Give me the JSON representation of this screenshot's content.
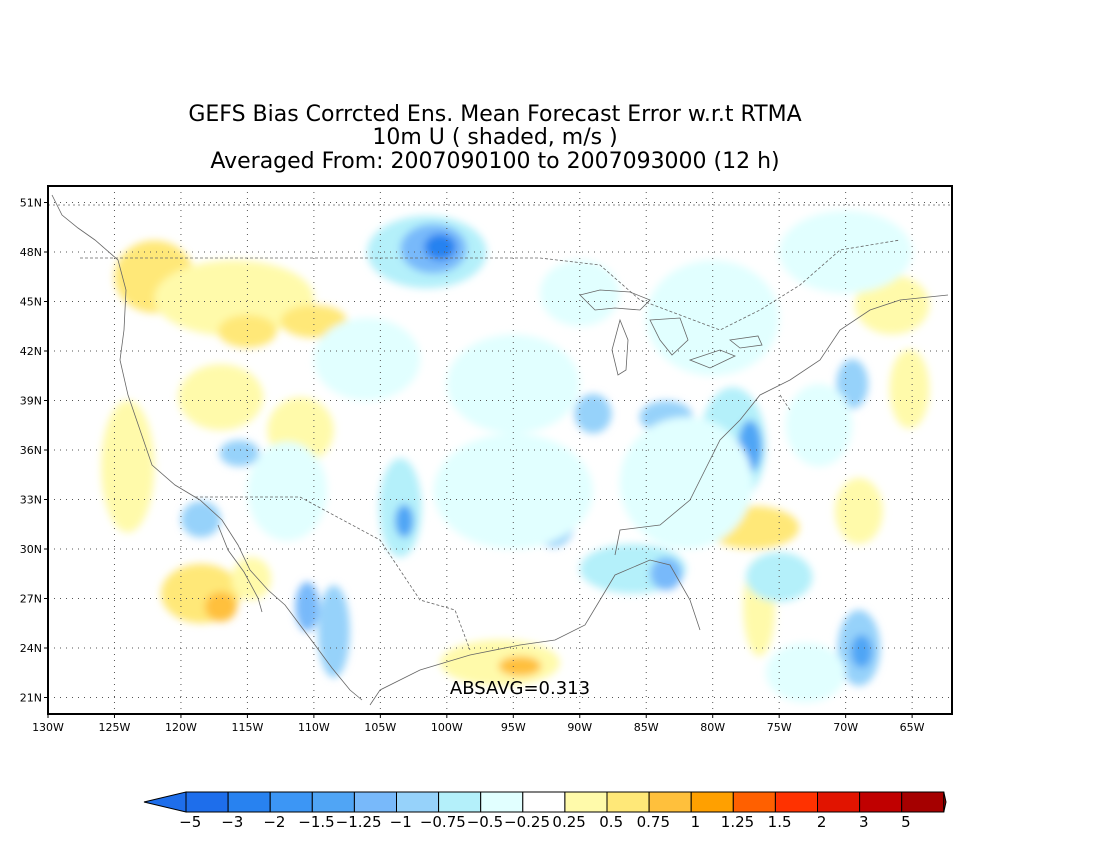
{
  "title": {
    "line1": "GEFS Bias Corrcted Ens. Mean Forecast Error w.r.t RTMA",
    "line2": "10m U ( shaded, m/s )",
    "line3": "Averaged From: 2007090100 to 2007093000 (12 h)"
  },
  "map": {
    "lon_range": [
      -130,
      -62
    ],
    "lat_range": [
      20,
      52
    ],
    "lat_ticks": [
      "21N",
      "24N",
      "27N",
      "30N",
      "33N",
      "36N",
      "39N",
      "42N",
      "45N",
      "48N",
      "51N"
    ],
    "lon_ticks": [
      "130W",
      "125W",
      "120W",
      "115W",
      "110W",
      "105W",
      "100W",
      "95W",
      "90W",
      "85W",
      "80W",
      "75W",
      "70W",
      "65W"
    ],
    "annotation": "ABSAVG=0.313"
  },
  "colorbar": {
    "labels": [
      "−5",
      "−3",
      "−2",
      "−1.5",
      "−1.25",
      "−1",
      "−0.75",
      "−0.5",
      "−0.25",
      "0.25",
      "0.5",
      "0.75",
      "1",
      "1.25",
      "1.5",
      "2",
      "3",
      "5"
    ],
    "colors": [
      "#1e6eeb",
      "#2882f0",
      "#3c96f5",
      "#50a5f5",
      "#78b9fa",
      "#96d2fa",
      "#b4f0fa",
      "#e1ffff",
      "#ffffff",
      "#fffaaa",
      "#ffe878",
      "#ffc03c",
      "#ffa000",
      "#ff6000",
      "#ff3200",
      "#e11400",
      "#c00000",
      "#a50000"
    ]
  },
  "blobs": [
    {
      "lon": -123,
      "lat": 47.2,
      "rx": 1.2,
      "ry": 1.2,
      "c": 11
    },
    {
      "lon": -122,
      "lat": 46.5,
      "rx": 3.0,
      "ry": 2.2,
      "c": 10
    },
    {
      "lon": -116,
      "lat": 45.2,
      "rx": 6,
      "ry": 2.3,
      "c": 9
    },
    {
      "lon": -115,
      "lat": 43.2,
      "rx": 2.2,
      "ry": 1.0,
      "c": 10
    },
    {
      "lon": -110,
      "lat": 43.8,
      "rx": 2.5,
      "ry": 1.0,
      "c": 10
    },
    {
      "lon": -117,
      "lat": 39.2,
      "rx": 3.2,
      "ry": 2.0,
      "c": 9
    },
    {
      "lon": -111,
      "lat": 37.2,
      "rx": 2.5,
      "ry": 2.0,
      "c": 9
    },
    {
      "lon": -124,
      "lat": 35.0,
      "rx": 2,
      "ry": 4.0,
      "c": 9
    },
    {
      "lon": -118.5,
      "lat": 27.3,
      "rx": 3.0,
      "ry": 1.8,
      "c": 10
    },
    {
      "lon": -117,
      "lat": 26.5,
      "rx": 1.2,
      "ry": 0.9,
      "c": 11
    },
    {
      "lon": -114.7,
      "lat": 28.2,
      "rx": 1.5,
      "ry": 1.3,
      "c": 9
    },
    {
      "lon": -96,
      "lat": 23.1,
      "rx": 4.5,
      "ry": 1.4,
      "c": 9
    },
    {
      "lon": -94.5,
      "lat": 22.9,
      "rx": 1.6,
      "ry": 0.6,
      "c": 11
    },
    {
      "lon": -77,
      "lat": 31.3,
      "rx": 3.5,
      "ry": 1.3,
      "c": 10
    },
    {
      "lon": -65.2,
      "lat": 39.7,
      "rx": 1.5,
      "ry": 2.4,
      "c": 9
    },
    {
      "lon": -66.5,
      "lat": 44.8,
      "rx": 2.8,
      "ry": 1.8,
      "c": 9
    },
    {
      "lon": -69,
      "lat": 32.3,
      "rx": 1.8,
      "ry": 2.0,
      "c": 9
    },
    {
      "lon": -76.5,
      "lat": 26.5,
      "rx": 1.2,
      "ry": 3.0,
      "c": 9
    },
    {
      "lon": -101.5,
      "lat": 48.0,
      "rx": 4.5,
      "ry": 2.2,
      "c": 6
    },
    {
      "lon": -101,
      "lat": 48.2,
      "rx": 2.5,
      "ry": 1.5,
      "c": 4
    },
    {
      "lon": -100.5,
      "lat": 48.3,
      "rx": 1.2,
      "ry": 0.8,
      "c": 1
    },
    {
      "lon": -78.5,
      "lat": 36.3,
      "rx": 2.5,
      "ry": 3.5,
      "c": 6
    },
    {
      "lon": -77.2,
      "lat": 36.2,
      "rx": 0.9,
      "ry": 1.6,
      "c": 3
    },
    {
      "lon": -103.5,
      "lat": 32.5,
      "rx": 1.6,
      "ry": 3.0,
      "c": 6
    },
    {
      "lon": -103.2,
      "lat": 31.7,
      "rx": 0.7,
      "ry": 1.0,
      "c": 3
    },
    {
      "lon": -118.5,
      "lat": 31.8,
      "rx": 1.5,
      "ry": 1.1,
      "c": 5
    },
    {
      "lon": -115.6,
      "lat": 35.8,
      "rx": 1.5,
      "ry": 0.8,
      "c": 5
    },
    {
      "lon": -89,
      "lat": 38.2,
      "rx": 1.4,
      "ry": 1.2,
      "c": 5
    },
    {
      "lon": -83.5,
      "lat": 38.0,
      "rx": 2.0,
      "ry": 1.0,
      "c": 5
    },
    {
      "lon": -92,
      "lat": 31.6,
      "rx": 1.6,
      "ry": 1.5,
      "c": 5
    },
    {
      "lon": -86,
      "lat": 28.8,
      "rx": 4.0,
      "ry": 1.5,
      "c": 6
    },
    {
      "lon": -83.5,
      "lat": 28.5,
      "rx": 1.2,
      "ry": 1.0,
      "c": 4
    },
    {
      "lon": -75,
      "lat": 28.3,
      "rx": 2.5,
      "ry": 1.5,
      "c": 6
    },
    {
      "lon": -69,
      "lat": 24.0,
      "rx": 1.6,
      "ry": 2.3,
      "c": 5
    },
    {
      "lon": -68.8,
      "lat": 23.8,
      "rx": 0.8,
      "ry": 1.0,
      "c": 3
    },
    {
      "lon": -108.5,
      "lat": 25.0,
      "rx": 1.2,
      "ry": 2.8,
      "c": 5
    },
    {
      "lon": -110.5,
      "lat": 26.5,
      "rx": 0.9,
      "ry": 1.5,
      "c": 4
    },
    {
      "lon": -69.5,
      "lat": 40.0,
      "rx": 1.2,
      "ry": 1.5,
      "c": 5
    },
    {
      "lon": -95,
      "lat": 40.0,
      "rx": 5.0,
      "ry": 3.0,
      "c": 7
    },
    {
      "lon": -106,
      "lat": 41.5,
      "rx": 4.0,
      "ry": 2.5,
      "c": 7
    },
    {
      "lon": -95,
      "lat": 33.5,
      "rx": 6.0,
      "ry": 3.5,
      "c": 7
    },
    {
      "lon": -82,
      "lat": 34.0,
      "rx": 5.0,
      "ry": 4.0,
      "c": 7
    },
    {
      "lon": -80,
      "lat": 44.0,
      "rx": 5.0,
      "ry": 3.5,
      "c": 7
    },
    {
      "lon": -70,
      "lat": 48.0,
      "rx": 5.0,
      "ry": 2.5,
      "c": 7
    },
    {
      "lon": -112,
      "lat": 33.5,
      "rx": 3.0,
      "ry": 3.0,
      "c": 7
    },
    {
      "lon": -90,
      "lat": 45.5,
      "rx": 3.0,
      "ry": 2.0,
      "c": 7
    },
    {
      "lon": -72,
      "lat": 37.5,
      "rx": 2.5,
      "ry": 2.5,
      "c": 7
    },
    {
      "lon": -73,
      "lat": 22.5,
      "rx": 3.0,
      "ry": 1.8,
      "c": 7
    }
  ]
}
